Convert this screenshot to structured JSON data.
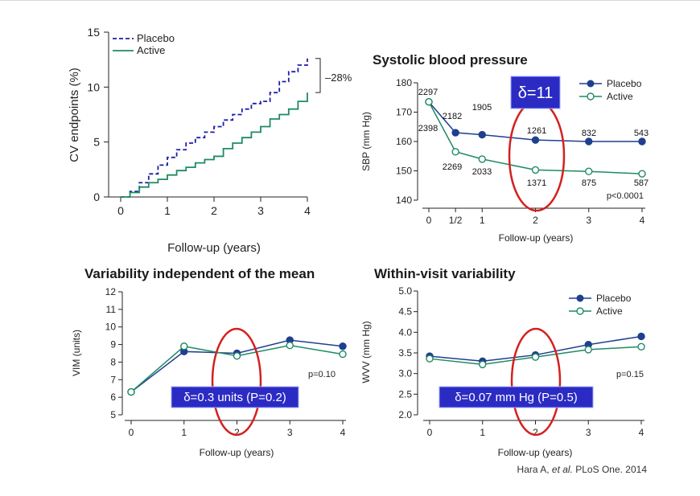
{
  "colors": {
    "placebo": "#1f3f8f",
    "placebo_dashed": "#1b1fa8",
    "active": "#1f8a63",
    "highlight": "#d42020",
    "box": "#2b2bc4"
  },
  "citation": {
    "authors": "Hara A, ",
    "etal": "et al.",
    "rest": " PLoS One. 2014"
  },
  "chart_data": [
    {
      "id": "cv",
      "type": "line",
      "title": "",
      "xlabel": "Follow-up (years)",
      "ylabel": "CV endpoints (%)",
      "xlim": [
        0,
        4
      ],
      "ylim": [
        0,
        15
      ],
      "xticks": [
        0,
        1,
        2,
        3,
        4
      ],
      "yticks": [
        0,
        5,
        10,
        15
      ],
      "legend": {
        "placement": "top-left",
        "entries": [
          "Placebo",
          "Active"
        ]
      },
      "annotation": "–28%",
      "series": [
        {
          "name": "Placebo",
          "style": "dashed",
          "x": [
            0,
            0.2,
            0.4,
            0.6,
            0.8,
            1.0,
            1.2,
            1.4,
            1.6,
            1.8,
            2.0,
            2.2,
            2.4,
            2.6,
            2.8,
            3.0,
            3.2,
            3.4,
            3.6,
            3.8,
            4.0
          ],
          "y": [
            0,
            0.5,
            1.3,
            2.1,
            2.9,
            3.6,
            4.3,
            4.9,
            5.4,
            5.9,
            6.4,
            7.0,
            7.5,
            8.0,
            8.5,
            8.7,
            9.5,
            10.5,
            11.4,
            12.0,
            12.6
          ]
        },
        {
          "name": "Active",
          "style": "solid",
          "x": [
            0,
            0.2,
            0.4,
            0.6,
            0.8,
            1.0,
            1.2,
            1.4,
            1.6,
            1.8,
            2.0,
            2.2,
            2.4,
            2.6,
            2.8,
            3.0,
            3.2,
            3.4,
            3.6,
            3.8,
            4.0
          ],
          "y": [
            0,
            0.4,
            0.9,
            1.3,
            1.6,
            2.0,
            2.4,
            2.7,
            3.1,
            3.4,
            3.7,
            4.4,
            4.9,
            5.4,
            5.9,
            6.4,
            7.1,
            7.5,
            8.0,
            8.7,
            9.5
          ]
        }
      ]
    },
    {
      "id": "sbp",
      "type": "line",
      "title": "Systolic blood pressure",
      "xlabel": "Follow-up (years)",
      "ylabel": "SBP (mm Hg)",
      "ylim": [
        140,
        180
      ],
      "categories": [
        "0",
        "1/2",
        "1",
        "2",
        "3",
        "4"
      ],
      "x": [
        0,
        0.5,
        1,
        2,
        3,
        4
      ],
      "yticks": [
        140,
        150,
        160,
        170,
        180
      ],
      "legend": {
        "placement": "top-right",
        "entries": [
          "Placebo",
          "Active"
        ]
      },
      "delta_box": "δ=11",
      "p_value": "p<0.0001",
      "series": [
        {
          "name": "Placebo",
          "values": [
            173.5,
            163,
            162.3,
            160.5,
            160,
            160
          ],
          "labels": [
            "2297",
            "2182",
            "1905",
            "1261",
            "832",
            "543"
          ]
        },
        {
          "name": "Active",
          "values": [
            173.5,
            156.5,
            154,
            150.3,
            149.8,
            149
          ],
          "labels": [
            "2398",
            "2269",
            "2033",
            "1371",
            "875",
            "587"
          ]
        }
      ]
    },
    {
      "id": "vim",
      "type": "line",
      "title": "Variability independent of the mean",
      "xlabel": "Follow-up (years)",
      "ylabel": "VIM (units)",
      "ylim": [
        5,
        12
      ],
      "x": [
        0,
        1,
        2,
        3,
        4
      ],
      "yticks": [
        5,
        6,
        7,
        8,
        9,
        10,
        11,
        12
      ],
      "delta_box": "δ=0.3 units (P=0.2)",
      "p_value": "p=0.10",
      "series": [
        {
          "name": "Placebo",
          "values": [
            6.3,
            8.6,
            8.5,
            9.25,
            8.9
          ]
        },
        {
          "name": "Active",
          "values": [
            6.3,
            8.9,
            8.35,
            8.95,
            8.45
          ]
        }
      ]
    },
    {
      "id": "wvv",
      "type": "line",
      "title": "Within-visit variability",
      "xlabel": "Follow-up (years)",
      "ylabel": "WVV (mm Hg)",
      "ylim": [
        2.0,
        5.0
      ],
      "x": [
        0,
        1,
        2,
        3,
        4
      ],
      "yticks": [
        "2.0",
        "2.5",
        "3.0",
        "3.5",
        "4.0",
        "4.5",
        "5.0"
      ],
      "legend": {
        "placement": "top-right",
        "entries": [
          "Placebo",
          "Active"
        ]
      },
      "delta_box": "δ=0.07 mm Hg (P=0.5)",
      "p_value": "p=0.15",
      "series": [
        {
          "name": "Placebo",
          "values": [
            3.42,
            3.3,
            3.45,
            3.7,
            3.9
          ]
        },
        {
          "name": "Active",
          "values": [
            3.36,
            3.22,
            3.4,
            3.58,
            3.65
          ]
        }
      ]
    }
  ]
}
